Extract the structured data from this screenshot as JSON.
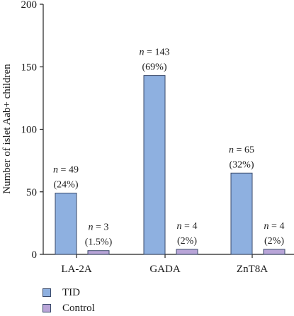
{
  "chart_data": {
    "type": "bar",
    "categories": [
      "LA-2A",
      "GADA",
      "ZnT8A"
    ],
    "series": [
      {
        "name": "TID",
        "color": "#8eb0e0",
        "values": [
          49,
          143,
          65
        ],
        "labels": [
          {
            "n": "n = 49",
            "pct": "(24%)"
          },
          {
            "n": "n = 143",
            "pct": "(69%)"
          },
          {
            "n": "n = 65",
            "pct": "(32%)"
          }
        ]
      },
      {
        "name": "Control",
        "color": "#b9a5d8",
        "values": [
          3,
          4,
          4
        ],
        "labels": [
          {
            "n": "n = 3",
            "pct": "(1.5%)"
          },
          {
            "n": "n = 4",
            "pct": "(2%)"
          },
          {
            "n": "n = 4",
            "pct": "(2%)"
          }
        ]
      }
    ],
    "ylabel": "Number of islet Aab+ children",
    "xlabel": "",
    "ylim": [
      0,
      200
    ],
    "yticks": [
      0,
      50,
      100,
      150,
      200
    ],
    "grid": false,
    "legend_position": "bottom-left"
  }
}
